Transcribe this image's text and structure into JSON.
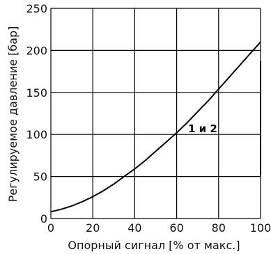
{
  "chart_data": {
    "type": "line",
    "xlabel": "Опорный сигнал [% от макс.]",
    "ylabel": "Регулируемое давление [бар]",
    "xlim": [
      0,
      100
    ],
    "ylim": [
      0,
      250
    ],
    "x_ticks": [
      0,
      20,
      40,
      60,
      80,
      100
    ],
    "y_ticks": [
      0,
      50,
      100,
      150,
      200,
      250
    ],
    "grid": true,
    "annotation": "1 и 2",
    "series": [
      {
        "x": [
          0,
          5,
          10,
          15,
          20,
          25,
          30,
          35,
          40,
          45,
          50,
          55,
          60,
          65,
          70,
          75,
          80,
          85,
          90,
          95,
          100
        ],
        "values": [
          8,
          11,
          15,
          20,
          26,
          33,
          41,
          50,
          59,
          69,
          80,
          91,
          102,
          114,
          127,
          140,
          154,
          168,
          182,
          196,
          210
        ]
      }
    ]
  }
}
